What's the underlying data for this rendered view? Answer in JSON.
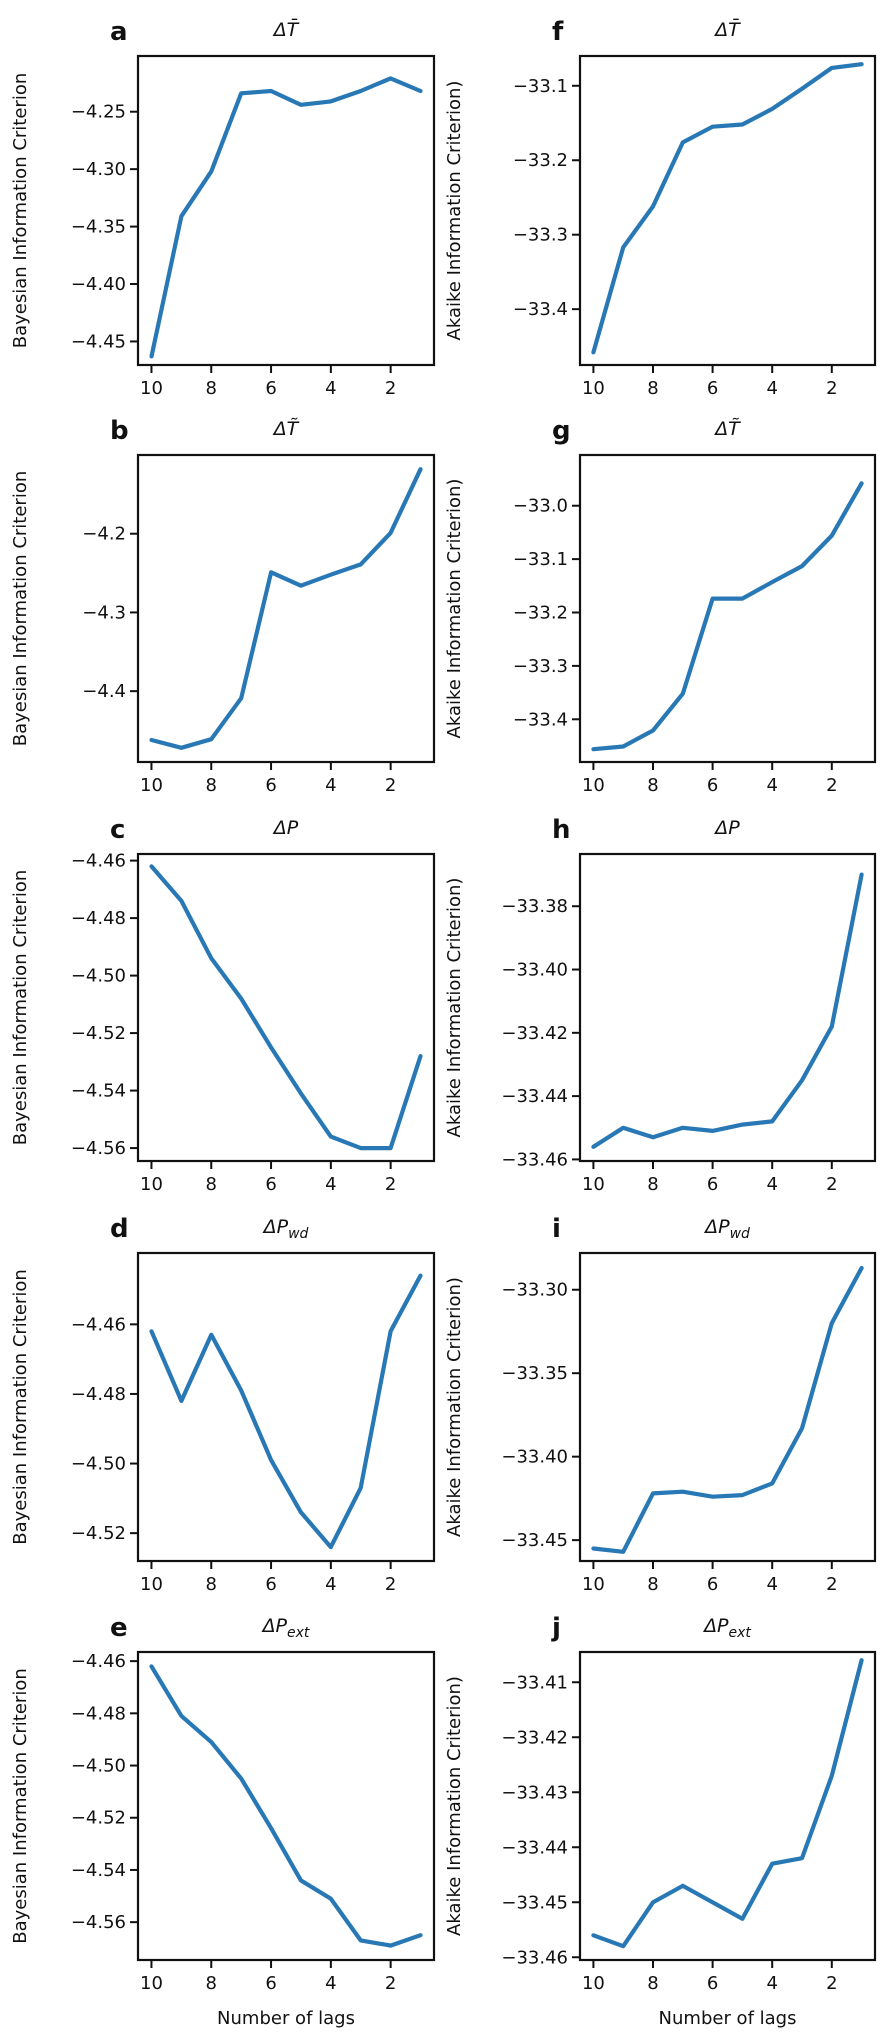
{
  "chart_data": [
    {
      "id": "a",
      "type": "line",
      "panel_letter": "a",
      "title": "ΔT̄",
      "ylabel": "Bayesian Information Criterion",
      "xlabel": "",
      "xlim": [
        10.45,
        0.55
      ],
      "xticks": [
        10,
        8,
        6,
        4,
        2
      ],
      "ylim": [
        -4.4705,
        -4.2015
      ],
      "yticks": [
        -4.45,
        -4.4,
        -4.35,
        -4.3,
        -4.25
      ],
      "ytick_labels": [
        "−4.45",
        "−4.40",
        "−4.35",
        "−4.30",
        "−4.25"
      ],
      "x": [
        10,
        9,
        8,
        7,
        6,
        5,
        4,
        3,
        2,
        1
      ],
      "values": [
        -4.463,
        -4.341,
        -4.302,
        -4.234,
        -4.232,
        -4.244,
        -4.241,
        -4.232,
        -4.221,
        -4.232
      ]
    },
    {
      "id": "f",
      "type": "line",
      "panel_letter": "f",
      "title": "ΔT̄",
      "ylabel": "Akaike Information Criterion)",
      "xlabel": "",
      "xlim": [
        10.45,
        0.55
      ],
      "xticks": [
        10,
        8,
        6,
        4,
        2
      ],
      "ylim": [
        -33.475,
        -33.06
      ],
      "yticks": [
        -33.4,
        -33.3,
        -33.2,
        -33.1
      ],
      "ytick_labels": [
        "−33.4",
        "−33.3",
        "−33.2",
        "−33.1"
      ],
      "x": [
        10,
        9,
        8,
        7,
        6,
        5,
        4,
        3,
        2,
        1
      ],
      "values": [
        -33.458,
        -33.317,
        -33.262,
        -33.176,
        -33.155,
        -33.152,
        -33.131,
        -33.104,
        -33.076,
        -33.071
      ]
    },
    {
      "id": "b",
      "type": "line",
      "panel_letter": "b",
      "title": "ΔT̃",
      "ylabel": "Bayesian Information Criterion",
      "xlabel": "",
      "xlim": [
        10.45,
        0.55
      ],
      "xticks": [
        10,
        8,
        6,
        4,
        2
      ],
      "ylim": [
        -4.49,
        -4.1
      ],
      "yticks": [
        -4.4,
        -4.3,
        -4.2
      ],
      "ytick_labels": [
        "−4.4",
        "−4.3",
        "−4.2"
      ],
      "x": [
        10,
        9,
        8,
        7,
        6,
        5,
        4,
        3,
        2,
        1
      ],
      "values": [
        -4.462,
        -4.472,
        -4.461,
        -4.409,
        -4.249,
        -4.266,
        -4.252,
        -4.239,
        -4.199,
        -4.118
      ]
    },
    {
      "id": "g",
      "type": "line",
      "panel_letter": "g",
      "title": "ΔT̃",
      "ylabel": "Akaike Information Criterion)",
      "xlabel": "",
      "xlim": [
        10.45,
        0.55
      ],
      "xticks": [
        10,
        8,
        6,
        4,
        2
      ],
      "ylim": [
        -33.48,
        -32.905
      ],
      "yticks": [
        -33.4,
        -33.3,
        -33.2,
        -33.1,
        -33.0
      ],
      "ytick_labels": [
        "−33.4",
        "−33.3",
        "−33.2",
        "−33.1",
        "−33.0"
      ],
      "x": [
        10,
        9,
        8,
        7,
        6,
        5,
        4,
        3,
        2,
        1
      ],
      "values": [
        -33.456,
        -33.451,
        -33.421,
        -33.352,
        -33.174,
        -33.174,
        -33.143,
        -33.113,
        -33.056,
        -32.958
      ]
    },
    {
      "id": "c",
      "type": "line",
      "panel_letter": "c",
      "title": "ΔP",
      "ylabel": "Bayesian Information Criterion",
      "xlabel": "",
      "xlim": [
        10.45,
        0.55
      ],
      "xticks": [
        10,
        8,
        6,
        4,
        2
      ],
      "ylim": [
        -4.5645,
        -4.4577
      ],
      "yticks": [
        -4.56,
        -4.54,
        -4.52,
        -4.5,
        -4.48,
        -4.46
      ],
      "ytick_labels": [
        "−4.56",
        "−4.54",
        "−4.52",
        "−4.50",
        "−4.48",
        "−4.46"
      ],
      "x": [
        10,
        9,
        8,
        7,
        6,
        5,
        4,
        3,
        2,
        1
      ],
      "values": [
        -4.462,
        -4.474,
        -4.494,
        -4.508,
        -4.525,
        -4.541,
        -4.556,
        -4.56,
        -4.56,
        -4.528
      ]
    },
    {
      "id": "h",
      "type": "line",
      "panel_letter": "h",
      "title": "ΔP",
      "ylabel": "Akaike Information Criterion)",
      "xlabel": "",
      "xlim": [
        10.45,
        0.55
      ],
      "xticks": [
        10,
        8,
        6,
        4,
        2
      ],
      "ylim": [
        -33.4605,
        -33.3635
      ],
      "yticks": [
        -33.46,
        -33.44,
        -33.42,
        -33.4,
        -33.38
      ],
      "ytick_labels": [
        "−33.46",
        "−33.44",
        "−33.42",
        "−33.40",
        "−33.38"
      ],
      "x": [
        10,
        9,
        8,
        7,
        6,
        5,
        4,
        3,
        2,
        1
      ],
      "values": [
        -33.456,
        -33.45,
        -33.453,
        -33.45,
        -33.451,
        -33.449,
        -33.448,
        -33.435,
        -33.418,
        -33.37
      ]
    },
    {
      "id": "d",
      "type": "line",
      "panel_letter": "d",
      "title": "ΔP_wd",
      "title_main": "ΔP",
      "title_sub": "wd",
      "ylabel": "Bayesian Information Criterion",
      "xlabel": "",
      "xlim": [
        10.45,
        0.55
      ],
      "xticks": [
        10,
        8,
        6,
        4,
        2
      ],
      "ylim": [
        -4.528,
        -4.4395
      ],
      "yticks": [
        -4.52,
        -4.5,
        -4.48,
        -4.46
      ],
      "ytick_labels": [
        "−4.52",
        "−4.50",
        "−4.48",
        "−4.46"
      ],
      "x": [
        10,
        9,
        8,
        7,
        6,
        5,
        4,
        3,
        2,
        1
      ],
      "values": [
        -4.462,
        -4.482,
        -4.463,
        -4.479,
        -4.499,
        -4.514,
        -4.524,
        -4.507,
        -4.462,
        -4.446
      ]
    },
    {
      "id": "i",
      "type": "line",
      "panel_letter": "i",
      "title": "ΔP_wd",
      "title_main": "ΔP",
      "title_sub": "wd",
      "ylabel": "Akaike Information Criterion)",
      "xlabel": "",
      "xlim": [
        10.45,
        0.55
      ],
      "xticks": [
        10,
        8,
        6,
        4,
        2
      ],
      "ylim": [
        -33.4625,
        -33.278
      ],
      "yticks": [
        -33.45,
        -33.4,
        -33.35,
        -33.3
      ],
      "ytick_labels": [
        "−33.45",
        "−33.40",
        "−33.35",
        "−33.30"
      ],
      "x": [
        10,
        9,
        8,
        7,
        6,
        5,
        4,
        3,
        2,
        1
      ],
      "values": [
        -33.455,
        -33.457,
        -33.422,
        -33.421,
        -33.424,
        -33.423,
        -33.416,
        -33.383,
        -33.32,
        -33.287
      ]
    },
    {
      "id": "e",
      "type": "line",
      "panel_letter": "e",
      "title": "ΔP_ext",
      "title_main": "ΔP",
      "title_sub": "ext",
      "ylabel": "Bayesian Information Criterion",
      "xlabel": "Number of lags",
      "xlim": [
        10.45,
        0.55
      ],
      "xticks": [
        10,
        8,
        6,
        4,
        2
      ],
      "ylim": [
        -4.5745,
        -4.4565
      ],
      "yticks": [
        -4.56,
        -4.54,
        -4.52,
        -4.5,
        -4.48,
        -4.46
      ],
      "ytick_labels": [
        "−4.56",
        "−4.54",
        "−4.52",
        "−4.50",
        "−4.48",
        "−4.46"
      ],
      "x": [
        10,
        9,
        8,
        7,
        6,
        5,
        4,
        3,
        2,
        1
      ],
      "values": [
        -4.462,
        -4.481,
        -4.491,
        -4.505,
        -4.524,
        -4.544,
        -4.551,
        -4.567,
        -4.569,
        -4.565
      ]
    },
    {
      "id": "j",
      "type": "line",
      "panel_letter": "j",
      "title": "ΔP_ext",
      "title_main": "ΔP",
      "title_sub": "ext",
      "ylabel": "Akaike Information Criterion)",
      "xlabel": "Number of lags",
      "xlim": [
        10.45,
        0.55
      ],
      "xticks": [
        10,
        8,
        6,
        4,
        2
      ],
      "ylim": [
        -33.4605,
        -33.4045
      ],
      "yticks": [
        -33.46,
        -33.45,
        -33.44,
        -33.43,
        -33.42,
        -33.41
      ],
      "ytick_labels": [
        "−33.46",
        "−33.45",
        "−33.44",
        "−33.43",
        "−33.42",
        "−33.41"
      ],
      "x": [
        10,
        9,
        8,
        7,
        6,
        5,
        4,
        3,
        2,
        1
      ],
      "values": [
        -33.456,
        -33.458,
        -33.45,
        -33.447,
        -33.45,
        -33.453,
        -33.443,
        -33.442,
        -33.427,
        -33.406
      ]
    }
  ],
  "style": {
    "line_color": "#2878b5"
  }
}
